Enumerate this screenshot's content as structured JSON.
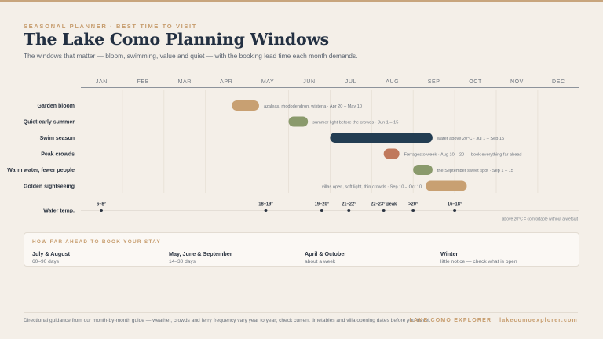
{
  "header": {
    "kicker": "SEASONAL PLANNER · BEST TIME TO VISIT",
    "title": "The Lake Como Planning Windows",
    "subtitle": "The windows that matter — bloom, swimming, value and quiet — with the booking lead time each month demands."
  },
  "colors": {
    "gold": "#c8a072",
    "green": "#8a9a6c",
    "navy": "#233d52",
    "terracotta": "#c0795c",
    "accent_text": "#c69c6d"
  },
  "chart_data": {
    "type": "timeline",
    "months": [
      "JAN",
      "FEB",
      "MAR",
      "APR",
      "MAY",
      "JUN",
      "JUL",
      "AUG",
      "SEP",
      "OCT",
      "NOV",
      "DEC"
    ],
    "rows": [
      {
        "label": "Garden bloom",
        "start": "Apr 20",
        "end": "May 10",
        "color": "gold",
        "note": "azaleas, rhododendron, wisteria · Apr 20 – May 10"
      },
      {
        "label": "Quiet early summer",
        "start": "Jun 1",
        "end": "Jun 15",
        "color": "green",
        "note": "summer light before the crowds · Jun 1 – 15"
      },
      {
        "label": "Swim season",
        "start": "Jul 1",
        "end": "Sep 15",
        "color": "navy",
        "note": "water above 20°C · Jul 1 – Sep 15"
      },
      {
        "label": "Peak crowds",
        "start": "Aug 10",
        "end": "Aug 20",
        "color": "terracotta",
        "note": "Ferragosto week · Aug 10 – 20 — book everything far ahead"
      },
      {
        "label": "Warm water, fewer people",
        "start": "Sep 1",
        "end": "Sep 15",
        "color": "green",
        "note": "the September sweet spot · Sep 1 – 15"
      },
      {
        "label": "Golden sightseeing",
        "start": "Sep 10",
        "end": "Oct 10",
        "color": "gold",
        "note": "villas open, soft light, thin crowds · Sep 10 – Oct 10"
      }
    ],
    "water_temp": {
      "label": "Water temp.",
      "points": [
        {
          "date": "Jan",
          "text": "6–8°"
        },
        {
          "date": "May 15",
          "text": "18–19°"
        },
        {
          "date": "Jun 25",
          "text": "19–20°"
        },
        {
          "date": "Jul 15",
          "text": "21–22°"
        },
        {
          "date": "Aug 10",
          "text": "22–23° peak"
        },
        {
          "date": "Sep 1",
          "text": ">20°"
        },
        {
          "date": "Oct 1",
          "text": "16–18°"
        }
      ],
      "note": "above 20°C = comfortable without a wetsuit"
    }
  },
  "booking": {
    "title": "HOW FAR AHEAD TO BOOK YOUR STAY",
    "items": [
      {
        "label": "July & August",
        "value": "60–90 days"
      },
      {
        "label": "May, June & September",
        "value": "14–30 days"
      },
      {
        "label": "April & October",
        "value": "about a week"
      },
      {
        "label": "Winter",
        "value": "little notice — check what is open"
      }
    ]
  },
  "footer": {
    "note": "Directional guidance from our month-by-month guide — weather, crowds and ferry frequency vary year to year; check current timetables and villa opening dates before you travel.",
    "brand": "LAKE COMO EXPLORER · lakecomoexplorer.com"
  }
}
